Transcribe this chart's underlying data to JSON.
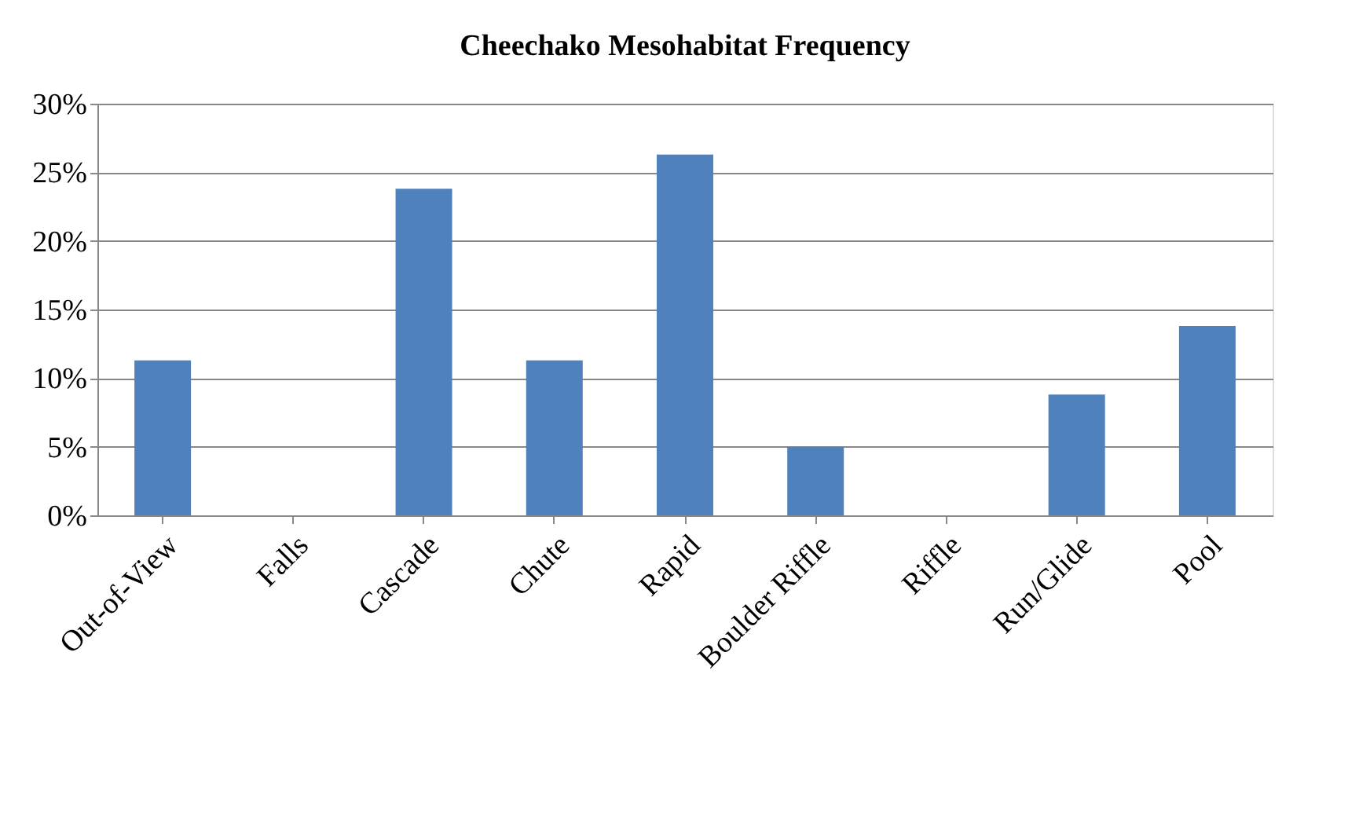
{
  "chart_data": {
    "type": "bar",
    "title": "Cheechako Mesohabitat Frequency",
    "categories": [
      "Out-of-View",
      "Falls",
      "Cascade",
      "Chute",
      "Rapid",
      "Boulder Riffle",
      "Riffle",
      "Run/Glide",
      "Pool"
    ],
    "values": [
      11.3,
      0,
      23.8,
      11.3,
      26.3,
      5,
      0,
      8.8,
      13.8
    ],
    "color": "#4f81bd",
    "ylim": [
      0,
      30
    ],
    "yticks": [
      {
        "value": 0,
        "label": "0%"
      },
      {
        "value": 5,
        "label": "5%"
      },
      {
        "value": 10,
        "label": "10%"
      },
      {
        "value": 15,
        "label": "15%"
      },
      {
        "value": 20,
        "label": "20%"
      },
      {
        "value": 25,
        "label": "25%"
      },
      {
        "value": 30,
        "label": "30%"
      }
    ],
    "grid": "y"
  }
}
